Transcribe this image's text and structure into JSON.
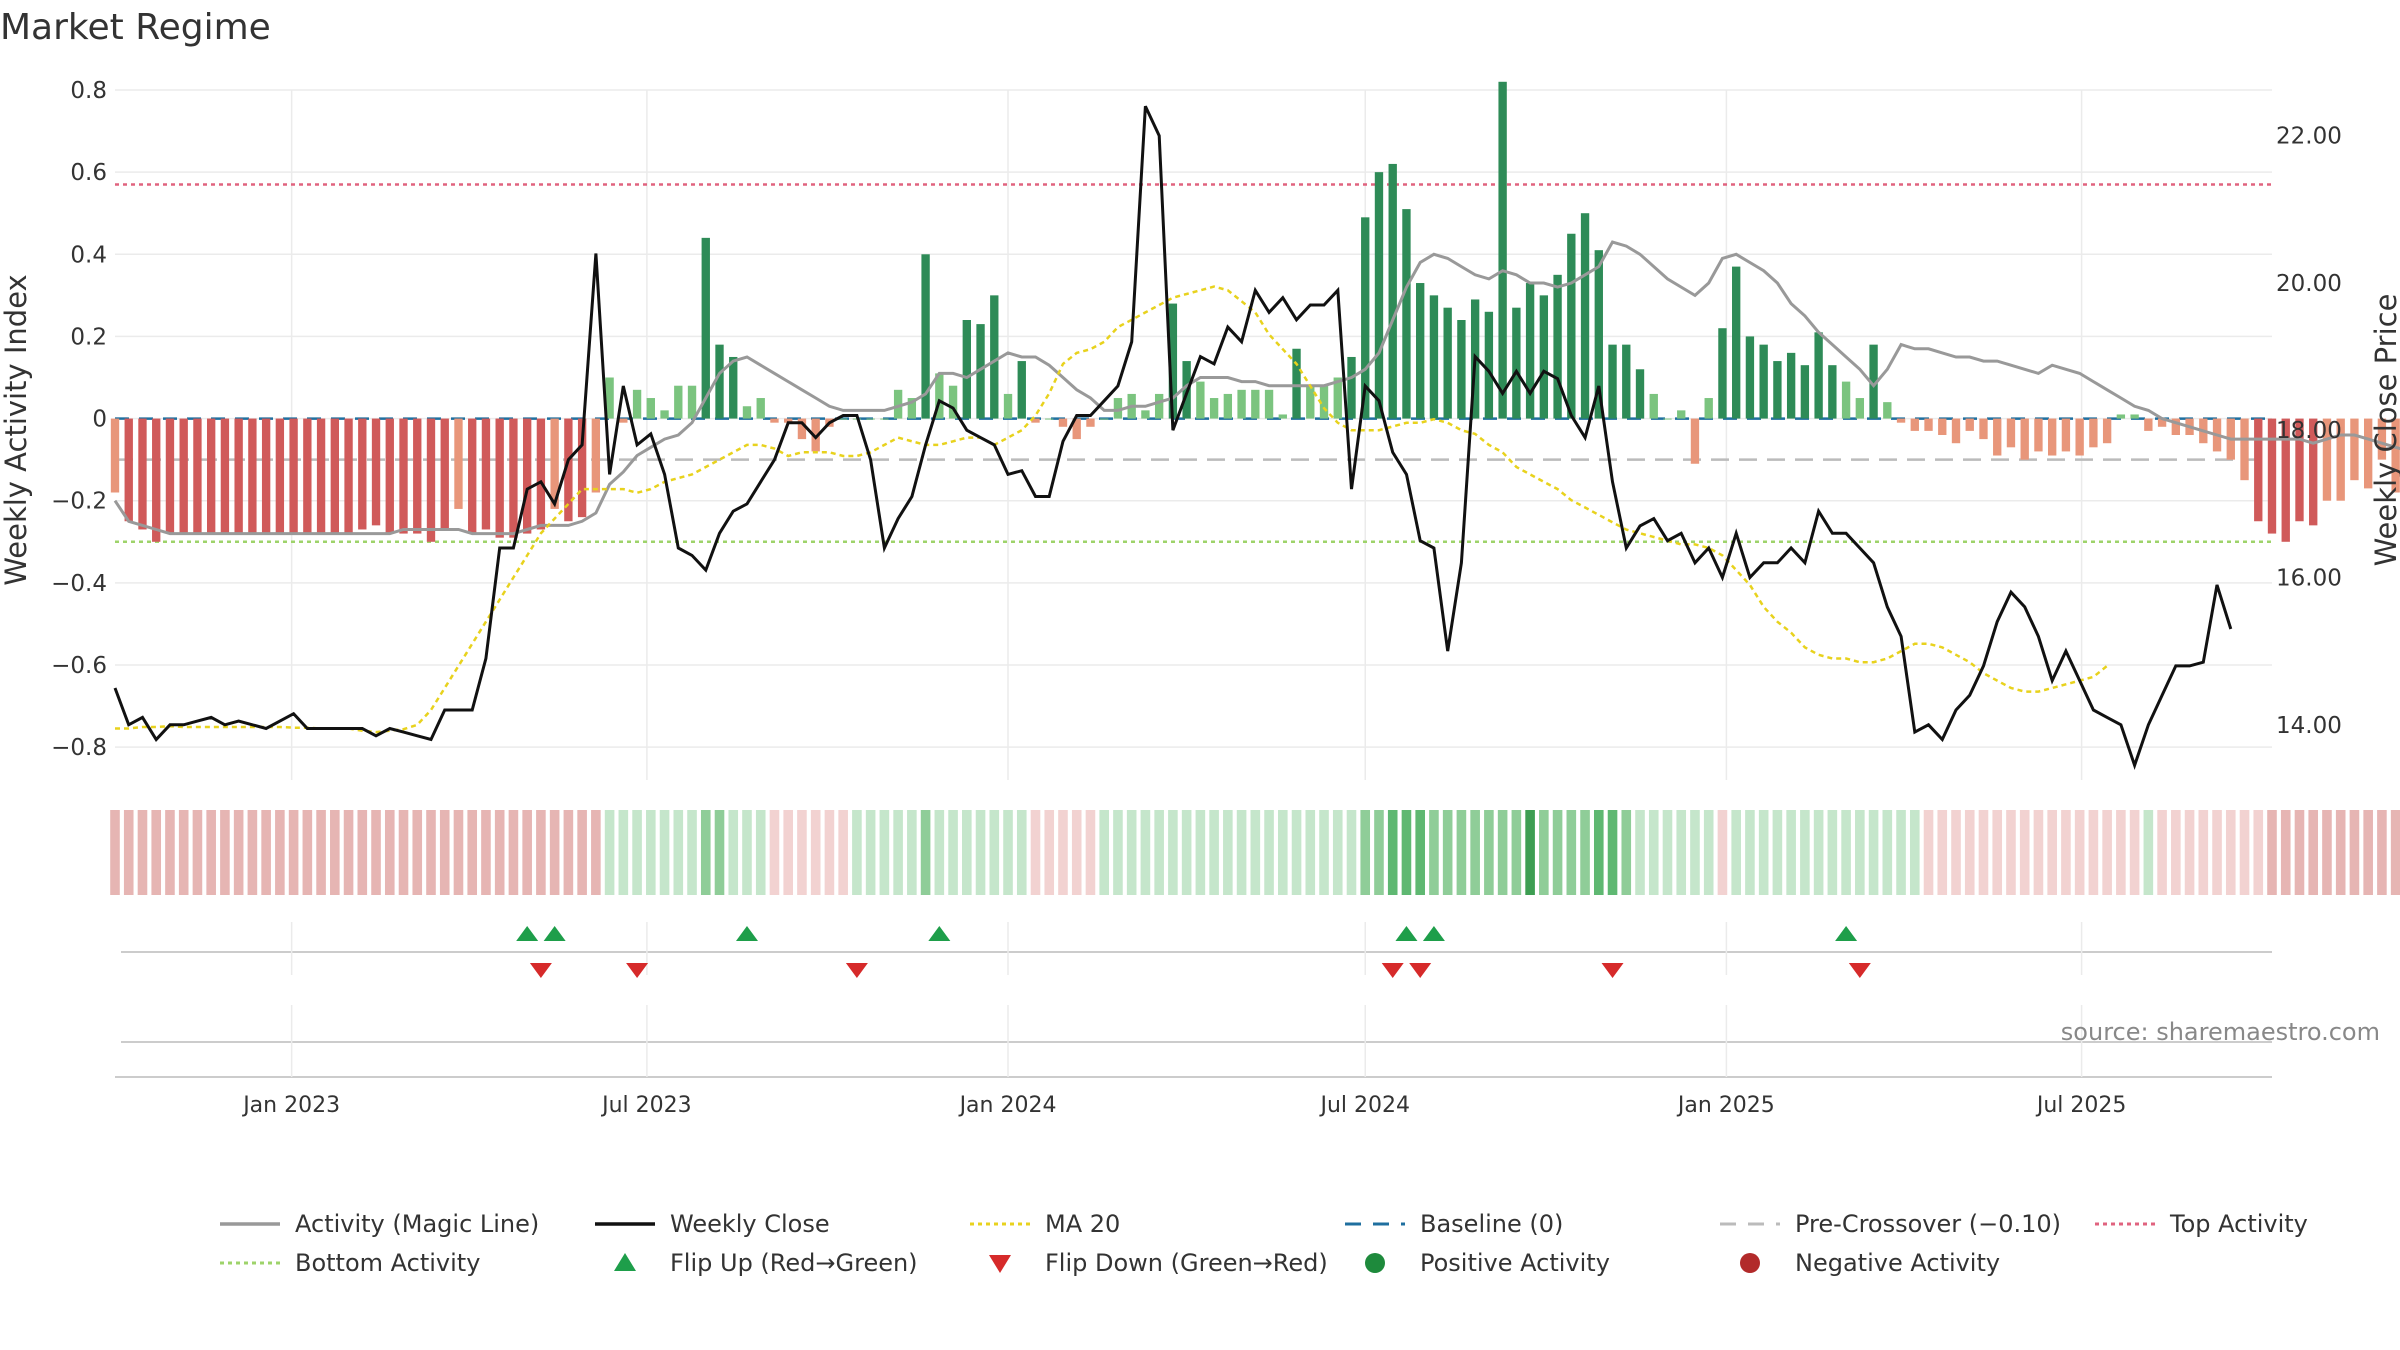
{
  "chart_data": {
    "type": "bar",
    "title": "Market Regime",
    "source": "source: sharemaestro.com",
    "y_left": {
      "label": "Weekly Activity Index",
      "range": [
        -0.88,
        0.8
      ],
      "ticks": [
        0.8,
        0.6,
        0.4,
        0.2,
        0,
        -0.2,
        -0.4,
        -0.6,
        -0.8
      ],
      "tick_labels": [
        "0.8",
        "0.6",
        "0.4",
        "0.2",
        "0",
        "−0.2",
        "−0.4",
        "−0.6",
        "−0.8"
      ]
    },
    "y_right": {
      "label": "Weekly Close Price",
      "range": [
        13.25,
        22.62
      ],
      "ticks": [
        22,
        20,
        18,
        16,
        14
      ],
      "tick_labels": [
        "22.00",
        "20.00",
        "18.00",
        "16.00",
        "14.00"
      ]
    },
    "x_axis": {
      "start_date": "2022-10-03",
      "end_date": "2025-10-06",
      "ticks": [
        "2023-01-01",
        "2023-07-01",
        "2024-01-01",
        "2024-07-01",
        "2025-01-01",
        "2025-07-01"
      ],
      "tick_labels": [
        "Jan 2023",
        "Jul 2023",
        "Jan 2024",
        "Jul 2024",
        "Jan 2025",
        "Jul 2025"
      ]
    },
    "reference_lines": {
      "top_activity": 0.57,
      "bottom_activity": -0.3,
      "baseline": 0,
      "pre_crossover": -0.1
    },
    "series": [
      {
        "name": "Weekly Activity",
        "kind": "bar",
        "values": [
          -0.18,
          -0.25,
          -0.27,
          -0.3,
          -0.28,
          -0.28,
          -0.28,
          -0.28,
          -0.28,
          -0.28,
          -0.28,
          -0.28,
          -0.28,
          -0.28,
          -0.28,
          -0.28,
          -0.28,
          -0.28,
          -0.27,
          -0.26,
          -0.28,
          -0.28,
          -0.28,
          -0.3,
          -0.27,
          -0.22,
          -0.28,
          -0.27,
          -0.29,
          -0.29,
          -0.28,
          -0.27,
          -0.22,
          -0.25,
          -0.24,
          -0.18,
          0.1,
          -0.01,
          0.07,
          0.05,
          0.02,
          0.08,
          0.08,
          0.44,
          0.18,
          0.15,
          0.03,
          0.05,
          -0.01,
          -0.01,
          -0.05,
          -0.08,
          -0.02,
          0,
          0,
          0,
          0,
          0.07,
          0.05,
          0.4,
          0.11,
          0.08,
          0.24,
          0.23,
          0.3,
          0.06,
          0.14,
          -0.01,
          0,
          -0.02,
          -0.05,
          -0.02,
          0,
          0.05,
          0.06,
          0.02,
          0.06,
          0.28,
          0.14,
          0.09,
          0.05,
          0.06,
          0.07,
          0.07,
          0.07,
          0.01,
          0.17,
          0.08,
          0.08,
          0.1,
          0.15,
          0.49,
          0.6,
          0.62,
          0.51,
          0.33,
          0.3,
          0.27,
          0.24,
          0.29,
          0.26,
          0.82,
          0.27,
          0.33,
          0.3,
          0.35,
          0.45,
          0.5,
          0.41,
          0.18,
          0.18,
          0.12,
          0.06,
          0,
          0.02,
          -0.11,
          0.05,
          0.22,
          0.37,
          0.2,
          0.18,
          0.14,
          0.16,
          0.13,
          0.21,
          0.13,
          0.09,
          0.05,
          0.18,
          0.04,
          -0.01,
          -0.03,
          -0.03,
          -0.04,
          -0.06,
          -0.03,
          -0.05,
          -0.09,
          -0.07,
          -0.1,
          -0.08,
          -0.09,
          -0.08,
          -0.09,
          -0.07,
          -0.06,
          0.01,
          0.01,
          -0.03,
          -0.02,
          -0.04,
          -0.04,
          -0.06,
          -0.08,
          -0.1,
          -0.15,
          -0.25,
          -0.28,
          -0.3,
          -0.25,
          -0.26,
          -0.2,
          -0.2,
          -0.15,
          -0.17,
          -0.1,
          -0.18,
          -0.2,
          -0.16,
          -0.2,
          -0.21,
          -0.22,
          -0.26,
          -0.22,
          -0.26,
          -0.25,
          -0.27,
          -0.31,
          -0.28,
          -0.25,
          -0.23,
          -0.2,
          -0.2,
          -0.19,
          -0.06,
          -0.17
        ]
      },
      {
        "name": "Activity (Magic Line)",
        "kind": "line",
        "values": [
          -0.2,
          -0.25,
          -0.26,
          -0.27,
          -0.28,
          -0.28,
          -0.28,
          -0.28,
          -0.28,
          -0.28,
          -0.28,
          -0.28,
          -0.28,
          -0.28,
          -0.28,
          -0.28,
          -0.28,
          -0.28,
          -0.28,
          -0.28,
          -0.28,
          -0.27,
          -0.27,
          -0.27,
          -0.27,
          -0.27,
          -0.28,
          -0.28,
          -0.28,
          -0.28,
          -0.27,
          -0.26,
          -0.26,
          -0.26,
          -0.25,
          -0.23,
          -0.16,
          -0.13,
          -0.09,
          -0.07,
          -0.05,
          -0.04,
          -0.01,
          0.05,
          0.11,
          0.14,
          0.15,
          0.13,
          0.11,
          0.09,
          0.07,
          0.05,
          0.03,
          0.02,
          0.02,
          0.02,
          0.02,
          0.03,
          0.04,
          0.06,
          0.11,
          0.11,
          0.1,
          0.12,
          0.14,
          0.16,
          0.15,
          0.15,
          0.13,
          0.1,
          0.07,
          0.05,
          0.02,
          0.02,
          0.03,
          0.03,
          0.04,
          0.05,
          0.08,
          0.1,
          0.1,
          0.1,
          0.09,
          0.09,
          0.08,
          0.08,
          0.08,
          0.08,
          0.08,
          0.09,
          0.1,
          0.12,
          0.16,
          0.24,
          0.32,
          0.38,
          0.4,
          0.39,
          0.37,
          0.35,
          0.34,
          0.36,
          0.35,
          0.33,
          0.33,
          0.32,
          0.33,
          0.35,
          0.37,
          0.43,
          0.42,
          0.4,
          0.37,
          0.34,
          0.32,
          0.3,
          0.33,
          0.39,
          0.4,
          0.38,
          0.36,
          0.33,
          0.28,
          0.25,
          0.21,
          0.18,
          0.15,
          0.12,
          0.08,
          0.12,
          0.18,
          0.17,
          0.17,
          0.16,
          0.15,
          0.15,
          0.14,
          0.14,
          0.13,
          0.12,
          0.11,
          0.13,
          0.12,
          0.11,
          0.09,
          0.07,
          0.05,
          0.03,
          0.02,
          0,
          -0.01,
          -0.02,
          -0.03,
          -0.04,
          -0.05,
          -0.05,
          -0.05,
          -0.05,
          -0.05,
          -0.05,
          -0.06,
          -0.05,
          -0.04,
          -0.04,
          -0.05,
          -0.06,
          -0.07,
          -0.08,
          -0.09,
          -0.11,
          -0.14,
          -0.17,
          -0.19,
          -0.2,
          -0.2,
          -0.18,
          -0.16,
          -0.15,
          -0.15,
          -0.17,
          -0.17,
          -0.18,
          -0.19,
          -0.19,
          -0.21,
          -0.22,
          -0.23,
          -0.24,
          -0.25,
          -0.25,
          -0.24,
          -0.23,
          -0.23,
          -0.22,
          -0.19,
          -0.18
        ]
      },
      {
        "name": "Weekly Close",
        "kind": "line",
        "axis": "right",
        "values": [
          14.5,
          14.0,
          14.1,
          13.8,
          14.0,
          14.0,
          14.05,
          14.1,
          14.0,
          14.05,
          14.0,
          13.95,
          14.05,
          14.15,
          13.95,
          13.95,
          13.95,
          13.95,
          13.95,
          13.85,
          13.95,
          13.9,
          13.85,
          13.8,
          14.2,
          14.2,
          14.2,
          14.9,
          16.4,
          16.4,
          17.2,
          17.3,
          17.0,
          17.6,
          17.8,
          20.4,
          17.4,
          18.6,
          17.8,
          17.95,
          17.4,
          16.4,
          16.3,
          16.1,
          16.6,
          16.9,
          17.0,
          17.3,
          17.6,
          18.1,
          18.1,
          17.9,
          18.1,
          18.2,
          18.2,
          17.6,
          16.4,
          16.8,
          17.1,
          17.8,
          18.4,
          18.3,
          18.0,
          17.9,
          17.8,
          17.4,
          17.45,
          17.1,
          17.1,
          17.85,
          18.2,
          18.2,
          18.4,
          18.6,
          19.2,
          22.4,
          22.0,
          18.0,
          18.5,
          19.0,
          18.9,
          19.4,
          19.2,
          19.9,
          19.6,
          19.8,
          19.5,
          19.7,
          19.7,
          19.9,
          17.2,
          18.6,
          18.4,
          17.7,
          17.4,
          16.5,
          16.4,
          15.0,
          16.2,
          19.0,
          18.8,
          18.5,
          18.8,
          18.5,
          18.8,
          18.7,
          18.2,
          17.9,
          18.6,
          17.3,
          16.4,
          16.7,
          16.8,
          16.5,
          16.6,
          16.2,
          16.4,
          16.0,
          16.6,
          16.0,
          16.2,
          16.2,
          16.4,
          16.2,
          16.9,
          16.6,
          16.6,
          16.4,
          16.2,
          15.6,
          15.2,
          13.9,
          14.0,
          13.8,
          14.2,
          14.4,
          14.8,
          15.4,
          15.8,
          15.6,
          15.2,
          14.6,
          15.0,
          14.6,
          14.2,
          14.1,
          14.0,
          13.45,
          14.0,
          14.4,
          14.8,
          14.8,
          14.85,
          15.9,
          15.3
        ]
      },
      {
        "name": "MA 20",
        "kind": "line",
        "axis": "right",
        "values": [
          13.95,
          13.95,
          13.97,
          13.97,
          13.98,
          13.97,
          13.97,
          13.97,
          13.97,
          13.97,
          13.97,
          13.97,
          13.97,
          13.96,
          13.96,
          13.95,
          13.95,
          13.95,
          13.92,
          13.9,
          13.92,
          13.94,
          14.0,
          14.2,
          14.5,
          14.8,
          15.1,
          15.4,
          15.7,
          16.0,
          16.3,
          16.6,
          16.8,
          17.0,
          17.2,
          17.2,
          17.2,
          17.2,
          17.15,
          17.2,
          17.3,
          17.35,
          17.4,
          17.5,
          17.6,
          17.7,
          17.8,
          17.8,
          17.75,
          17.65,
          17.7,
          17.7,
          17.7,
          17.65,
          17.65,
          17.7,
          17.8,
          17.9,
          17.85,
          17.8,
          17.8,
          17.85,
          17.9,
          17.9,
          17.8,
          17.9,
          18.0,
          18.2,
          18.5,
          18.9,
          19.05,
          19.1,
          19.2,
          19.4,
          19.5,
          19.6,
          19.7,
          19.8,
          19.85,
          19.9,
          19.95,
          19.9,
          19.75,
          19.6,
          19.3,
          19.1,
          18.9,
          18.6,
          18.3,
          18.1,
          18.0,
          18.0,
          18.0,
          18.05,
          18.1,
          18.1,
          18.15,
          18.1,
          18.0,
          17.95,
          17.8,
          17.7,
          17.5,
          17.4,
          17.3,
          17.2,
          17.05,
          16.95,
          16.85,
          16.75,
          16.65,
          16.6,
          16.55,
          16.5,
          16.45,
          16.45,
          16.4,
          16.3,
          16.1,
          15.9,
          15.6,
          15.4,
          15.25,
          15.05,
          14.95,
          14.9,
          14.9,
          14.85,
          14.85,
          14.9,
          15.0,
          15.1,
          15.1,
          15.05,
          14.95,
          14.85,
          14.7,
          14.6,
          14.5,
          14.45,
          14.45,
          14.5,
          14.55,
          14.6,
          14.65,
          14.8
        ]
      }
    ],
    "regime_strip": {
      "values": [
        -2,
        -2,
        -2,
        -2,
        -2,
        -2,
        -2,
        -2,
        -2,
        -2,
        -2,
        -2,
        -2,
        -2,
        -2,
        -2,
        -2,
        -2,
        -2,
        -2,
        -2,
        -2,
        -2,
        -2,
        -2,
        -2,
        -2,
        -2,
        -2,
        -2,
        -2,
        -2,
        -2,
        -2,
        -2,
        -2,
        1,
        1,
        1,
        1,
        1,
        1,
        1,
        2,
        2,
        1,
        1,
        1,
        -1,
        -1,
        -1,
        -1,
        -1,
        -1,
        1,
        1,
        1,
        1,
        1,
        2,
        1,
        1,
        1,
        1,
        1,
        1,
        1,
        -1,
        -1,
        -1,
        -1,
        -1,
        1,
        1,
        1,
        1,
        1,
        1,
        1,
        1,
        1,
        1,
        1,
        1,
        1,
        1,
        1,
        1,
        1,
        1,
        1,
        2,
        2,
        3,
        3,
        3,
        2,
        2,
        2,
        2,
        2,
        2,
        2,
        4,
        2,
        2,
        2,
        2,
        3,
        3,
        2,
        1,
        1,
        1,
        1,
        1,
        1,
        -1,
        1,
        1,
        1,
        1,
        1,
        1,
        1,
        1,
        1,
        1,
        1,
        1,
        1,
        1,
        -1,
        -1,
        -1,
        -1,
        -1,
        -1,
        -1,
        -1,
        -1,
        -1,
        -1,
        -1,
        -1,
        -1,
        -1,
        -1,
        1,
        -1,
        -1,
        -1,
        -1,
        -1,
        -1,
        -1,
        -1,
        -2,
        -2,
        -2,
        -2,
        -2,
        -2,
        -2,
        -2,
        -2,
        -2,
        -2,
        -2,
        -2,
        -2,
        -2,
        -2,
        -2,
        -2,
        -2,
        -2,
        -2,
        -2,
        -2,
        -2,
        -2,
        -2,
        -2,
        -2
      ]
    },
    "flip_up_dates": [
      "2023-05-01",
      "2023-05-15",
      "2023-08-21",
      "2023-11-27",
      "2024-07-22",
      "2024-08-05",
      "2025-03-03"
    ],
    "flip_down_dates": [
      "2023-05-08",
      "2023-06-26",
      "2023-10-16",
      "2024-07-15",
      "2024-07-29",
      "2024-11-04",
      "2025-03-10"
    ],
    "legend": {
      "placement": "bottom",
      "items": [
        {
          "label": "Activity (Magic Line)",
          "symbol": "line",
          "color": "#999999"
        },
        {
          "label": "Weekly Close",
          "symbol": "line",
          "color": "#111111"
        },
        {
          "label": "MA 20",
          "symbol": "dotted",
          "color": "#e8d21d"
        },
        {
          "label": "Baseline (0)",
          "symbol": "dashed",
          "color": "#1f6f9f"
        },
        {
          "label": "Pre-Crossover (−0.10)",
          "symbol": "dashed",
          "color": "#bbbbbb"
        },
        {
          "label": "Top Activity",
          "symbol": "dotted",
          "color": "#e0637f"
        },
        {
          "label": "Bottom Activity",
          "symbol": "dotted",
          "color": "#9ed36a"
        },
        {
          "label": "Flip Up (Red→Green)",
          "symbol": "triangle-up",
          "color": "#1e9e4a"
        },
        {
          "label": "Flip Down (Green→Red)",
          "symbol": "triangle-down",
          "color": "#d62a2a"
        },
        {
          "label": "Positive Activity",
          "symbol": "dot",
          "color": "#1e8a3c"
        },
        {
          "label": "Negative Activity",
          "symbol": "dot",
          "color": "#b22a2a"
        }
      ]
    },
    "colors": {
      "pos_strong": "#2e8b57",
      "pos_weak": "#7bc47f",
      "neg_strong": "#d05a5a",
      "neg_weak": "#e8967a",
      "grid": "#ebebeb"
    }
  }
}
